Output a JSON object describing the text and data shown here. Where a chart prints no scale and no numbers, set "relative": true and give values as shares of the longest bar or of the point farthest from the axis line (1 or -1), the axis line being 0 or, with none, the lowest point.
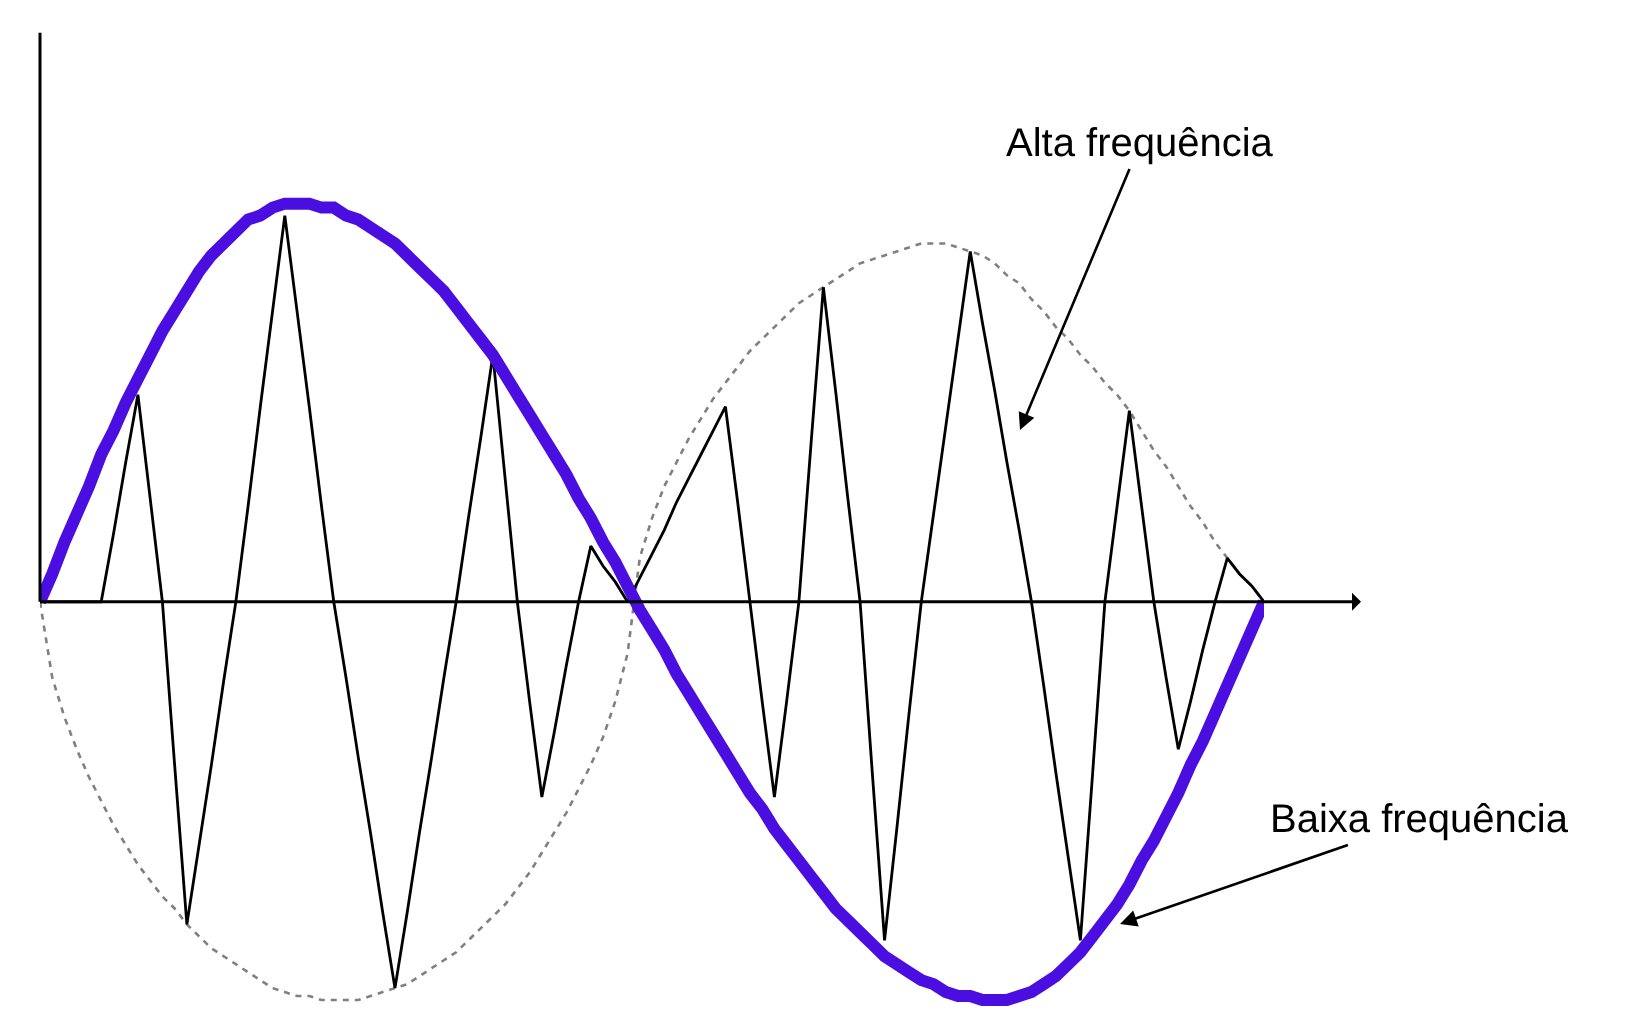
{
  "chart_data": {
    "type": "line",
    "relative": true,
    "marker": "none",
    "categories": [
      null,
      null,
      null,
      null,
      null,
      null,
      null,
      null,
      null,
      null,
      null,
      null,
      null,
      null,
      null,
      null,
      null,
      null,
      null,
      null,
      null,
      null,
      null,
      null,
      null,
      null,
      null,
      null,
      null,
      null,
      null,
      null,
      null,
      null,
      null,
      null,
      null,
      null,
      null,
      null,
      null,
      null,
      null,
      null,
      null,
      null,
      null,
      null,
      null,
      null,
      null,
      null,
      null,
      null,
      null,
      null,
      null,
      null,
      null,
      null,
      null,
      null,
      null,
      null,
      null,
      null,
      null,
      null,
      null,
      null,
      null,
      null,
      null,
      null,
      null,
      null,
      null,
      null,
      null,
      null,
      null,
      null,
      null,
      null,
      null,
      null,
      null,
      null,
      null,
      null,
      null,
      null,
      null,
      null,
      null,
      null,
      null,
      null,
      null,
      null,
      null
    ],
    "series": [
      {
        "color": "#808080",
        "line_style": "dotted",
        "values": [
          0,
          -0.19,
          -0.29,
          -0.37,
          -0.44,
          -0.5,
          -0.56,
          -0.61,
          -0.66,
          -0.7,
          -0.74,
          -0.77,
          -0.81,
          -0.84,
          -0.87,
          -0.89,
          -0.91,
          -0.93,
          -0.95,
          -0.97,
          -0.98,
          -0.99,
          -0.99,
          -1.0,
          -1.0,
          -1.0,
          -1.0,
          -0.99,
          -0.98,
          -0.97,
          -0.96,
          -0.94,
          -0.92,
          -0.9,
          -0.88,
          -0.85,
          -0.82,
          -0.79,
          -0.76,
          -0.72,
          -0.68,
          -0.63,
          -0.58,
          -0.53,
          -0.47,
          -0.41,
          -0.34,
          -0.25,
          -0.13,
          0.11,
          0.21,
          0.29,
          0.35,
          0.41,
          0.46,
          0.51,
          0.55,
          0.59,
          0.63,
          0.66,
          0.69,
          0.72,
          0.75,
          0.77,
          0.79,
          0.81,
          0.83,
          0.85,
          0.86,
          0.87,
          0.88,
          0.89,
          0.9,
          0.9,
          0.9,
          0.89,
          0.88,
          0.87,
          0.85,
          0.82,
          0.8,
          0.76,
          0.73,
          0.69,
          0.66,
          0.62,
          0.59,
          0.55,
          0.52,
          0.48,
          0.43,
          0.38,
          0.34,
          0.29,
          0.24,
          0.2,
          0.15,
          0.11,
          0.07,
          0.04,
          0
        ]
      },
      {
        "color": "#000000",
        "line_style": "solid",
        "values": [
          0,
          0,
          0,
          0,
          0,
          0,
          0.17,
          0.35,
          0.52,
          0.26,
          0,
          -0.41,
          -0.81,
          -0.61,
          -0.41,
          -0.2,
          0,
          0.24,
          0.49,
          0.73,
          0.97,
          0.73,
          0.49,
          0.24,
          0,
          -0.19,
          -0.39,
          -0.58,
          -0.78,
          -0.97,
          -0.78,
          -0.58,
          -0.39,
          -0.19,
          0,
          0.21,
          0.41,
          0.62,
          0.31,
          0,
          -0.25,
          -0.49,
          -0.33,
          -0.16,
          0,
          0.14,
          0.09,
          0.05,
          0,
          0.06,
          0.12,
          0.18,
          0.25,
          0.31,
          0.37,
          0.43,
          0.49,
          0.25,
          0,
          -0.25,
          -0.49,
          -0.25,
          0,
          0.4,
          0.79,
          0.53,
          0.26,
          0,
          -0.43,
          -0.85,
          -0.57,
          -0.28,
          0,
          0.22,
          0.44,
          0.66,
          0.88,
          0.7,
          0.53,
          0.35,
          0.18,
          0,
          -0.21,
          -0.43,
          -0.64,
          -0.85,
          -0.43,
          0,
          0.24,
          0.48,
          0.24,
          0,
          -0.19,
          -0.37,
          -0.25,
          -0.12,
          0,
          0.11,
          0.07,
          0.04,
          0
        ]
      },
      {
        "color": "#4a0fe0",
        "line_style": "solid",
        "values": [
          0,
          0.07,
          0.15,
          0.22,
          0.29,
          0.37,
          0.43,
          0.5,
          0.56,
          0.62,
          0.68,
          0.73,
          0.78,
          0.83,
          0.87,
          0.9,
          0.93,
          0.96,
          0.97,
          0.99,
          1.0,
          1.0,
          1.0,
          0.99,
          0.99,
          0.97,
          0.96,
          0.94,
          0.92,
          0.9,
          0.87,
          0.84,
          0.81,
          0.78,
          0.74,
          0.7,
          0.66,
          0.62,
          0.57,
          0.52,
          0.47,
          0.42,
          0.37,
          0.32,
          0.26,
          0.21,
          0.15,
          0.1,
          0.04,
          -0.02,
          -0.07,
          -0.12,
          -0.18,
          -0.23,
          -0.28,
          -0.33,
          -0.38,
          -0.43,
          -0.48,
          -0.52,
          -0.57,
          -0.61,
          -0.65,
          -0.69,
          -0.73,
          -0.77,
          -0.8,
          -0.83,
          -0.86,
          -0.89,
          -0.91,
          -0.93,
          -0.95,
          -0.96,
          -0.98,
          -0.99,
          -0.99,
          -1.0,
          -1.0,
          -1.0,
          -0.99,
          -0.98,
          -0.96,
          -0.94,
          -0.91,
          -0.88,
          -0.84,
          -0.8,
          -0.76,
          -0.71,
          -0.65,
          -0.6,
          -0.54,
          -0.48,
          -0.41,
          -0.35,
          -0.28,
          -0.21,
          -0.14,
          -0.07,
          0
        ]
      }
    ],
    "annotations": [
      "Alta frequência",
      "Baixa frequência"
    ]
  }
}
